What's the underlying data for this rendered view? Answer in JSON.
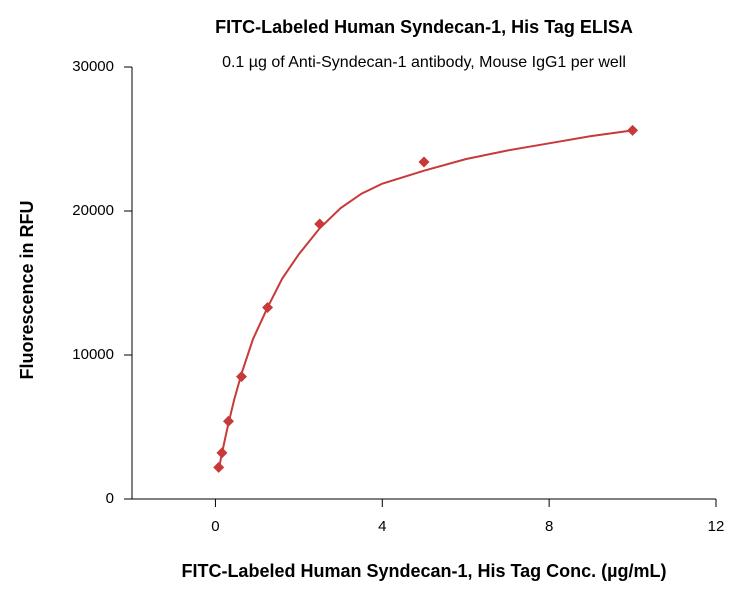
{
  "chart_data": {
    "type": "scatter",
    "title": "FITC-Labeled Human Syndecan-1, His Tag ELISA",
    "subtitle": "0.1 µg of Anti-Syndecan-1 antibody, Mouse IgG1 per well",
    "x_label": "FITC-Labeled Human Syndecan-1, His Tag Conc. (µg/mL)",
    "y_label": "Fluorescence in RFU",
    "series": [
      {
        "color": "#c8393a",
        "x": [
          0.078,
          0.156,
          0.3125,
          0.625,
          1.25,
          2.5,
          5,
          10
        ],
        "values": [
          2200,
          3200,
          5400,
          8500,
          13300,
          19100,
          23400,
          25600
        ]
      }
    ],
    "fit": {
      "color": "#c8393a",
      "x": [
        0.078,
        0.15,
        0.3,
        0.45,
        0.625,
        0.9,
        1.25,
        1.6,
        2,
        2.5,
        3,
        3.5,
        4,
        5,
        6,
        7,
        8,
        9,
        10
      ],
      "values": [
        2000,
        3100,
        5100,
        6900,
        8700,
        11100,
        13300,
        15300,
        17000,
        18800,
        20200,
        21200,
        21900,
        22800,
        23600,
        24200,
        24700,
        25200,
        25600
      ]
    },
    "xlim": [
      -2,
      12
    ],
    "xticks": [
      0,
      4,
      8,
      12
    ],
    "ylim": [
      0,
      30000
    ],
    "yticks": [
      0,
      10000,
      20000,
      30000
    ]
  }
}
